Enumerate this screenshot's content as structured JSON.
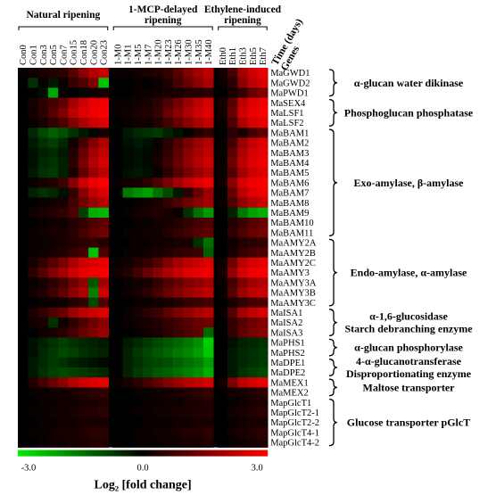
{
  "chart_data": {
    "type": "heatmap",
    "title": "",
    "column_groups": [
      {
        "name": "Natural ripening",
        "count": 9
      },
      {
        "name": "1-MCP-delayed ripening",
        "count": 10
      },
      {
        "name": "Ethylene-induced ripening",
        "count": 5
      }
    ],
    "columns": [
      "Con0",
      "Con1",
      "Con3",
      "Con5",
      "Con7",
      "Con15",
      "Con18",
      "Con20",
      "Con23",
      "1-M0",
      "1-M1",
      "1-M5",
      "1-M7",
      "1-M20",
      "1-M23",
      "1-M26",
      "1-M30",
      "1-M35",
      "1-M40",
      "Eth0",
      "Eth1",
      "Eth3",
      "Eth5",
      "Eth7"
    ],
    "corner_label_top": "Time (days)",
    "corner_label_bottom": "Genes",
    "rows": [
      "MaGWD1",
      "MaGWD2",
      "MaPWD1",
      "MaSEX4",
      "MaLSF1",
      "MaLSF2",
      "MaBAM1",
      "MaBAM2",
      "MaBAM3",
      "MaBAM4",
      "MaBAM5",
      "MaBAM6",
      "MaBAM7",
      "MaBAM8",
      "MaBAM9",
      "MaBAM10",
      "MaBAM11",
      "MaAMY2A",
      "MaAMY2B",
      "MaAMY2C",
      "MaAMY3",
      "MaAMY3A",
      "MaAMY3B",
      "MaAMY3C",
      "MaISA1",
      "MaISA2",
      "MaISA3",
      "MaPHS1",
      "MaPHS2",
      "MaDPE1",
      "MaDPE2",
      "MaMEX1",
      "MaMEX2",
      "MapGlcT1",
      "MapGlcT2-1",
      "MapGlcT2-2",
      "MapGlcT4-1",
      "MapGlcT4-2"
    ],
    "families": [
      {
        "lines": [
          "α-glucan water dikinase"
        ],
        "start": 0,
        "end": 2
      },
      {
        "lines": [
          "Phosphoglucan phosphatase"
        ],
        "start": 3,
        "end": 5
      },
      {
        "lines": [
          "Exo-amylase, β-amylase"
        ],
        "start": 6,
        "end": 16
      },
      {
        "lines": [
          "Endo-amylase, α-amylase"
        ],
        "start": 17,
        "end": 23
      },
      {
        "lines": [
          "α-1,6-glucosidase",
          "Starch debranching enzyme"
        ],
        "start": 24,
        "end": 26
      },
      {
        "lines": [
          "α-glucan phosphorylase"
        ],
        "start": 27,
        "end": 28
      },
      {
        "lines": [
          "4-α-glucanotransferase",
          "Disproportionating enzyme"
        ],
        "start": 29,
        "end": 30
      },
      {
        "lines": [
          "Maltose transporter"
        ],
        "start": 31,
        "end": 32
      },
      {
        "lines": [
          "Glucose transporter pGlcT"
        ],
        "start": 33,
        "end": 37
      }
    ],
    "values": [
      [
        0.1,
        0.2,
        0.3,
        0.4,
        0.5,
        1.0,
        1.6,
        2.1,
        2.3,
        0.1,
        0.1,
        0.2,
        0.3,
        0.4,
        0.6,
        1.0,
        1.5,
        1.9,
        2.2,
        0.2,
        0.8,
        1.9,
        2.4,
        2.7
      ],
      [
        0.0,
        -0.6,
        0.1,
        -0.3,
        0.1,
        0.6,
        0.9,
        1.5,
        -2.5,
        0.0,
        0.0,
        0.1,
        0.0,
        0.1,
        0.4,
        0.8,
        1.2,
        1.6,
        2.0,
        0.1,
        0.5,
        1.6,
        2.2,
        2.5
      ],
      [
        0.0,
        0.0,
        -0.2,
        -2.1,
        0.1,
        0.0,
        -0.1,
        0.2,
        0.3,
        0.0,
        0.0,
        0.1,
        0.1,
        0.2,
        0.3,
        0.3,
        0.4,
        0.4,
        0.5,
        0.0,
        0.3,
        0.6,
        1.2,
        1.5
      ],
      [
        0.0,
        0.3,
        0.5,
        0.8,
        1.1,
        1.9,
        2.4,
        2.7,
        2.8,
        0.1,
        0.1,
        0.2,
        0.3,
        0.5,
        0.9,
        1.3,
        1.8,
        2.2,
        2.5,
        0.3,
        1.0,
        2.2,
        2.6,
        2.8
      ],
      [
        0.0,
        0.2,
        0.5,
        1.0,
        1.5,
        2.2,
        2.6,
        2.8,
        2.9,
        0.1,
        0.2,
        0.3,
        0.4,
        0.6,
        1.2,
        1.6,
        2.0,
        2.4,
        2.6,
        0.2,
        1.2,
        2.4,
        2.7,
        2.9
      ],
      [
        0.0,
        0.1,
        0.3,
        0.6,
        0.9,
        1.5,
        2.0,
        2.4,
        2.6,
        0.0,
        0.1,
        0.2,
        0.2,
        0.4,
        0.8,
        1.2,
        1.6,
        2.0,
        2.3,
        0.1,
        0.9,
        2.0,
        2.5,
        2.7
      ],
      [
        0.0,
        -0.5,
        -0.9,
        -1.2,
        -1.0,
        -0.6,
        -0.3,
        -0.1,
        0.3,
        0.0,
        -0.3,
        -0.5,
        -0.6,
        -0.7,
        -0.4,
        -0.2,
        0.1,
        0.4,
        0.6,
        0.0,
        0.5,
        0.3,
        0.8,
        1.1
      ],
      [
        0.0,
        -0.3,
        -0.6,
        -0.8,
        -0.5,
        0.2,
        0.8,
        1.5,
        2.0,
        0.0,
        -0.2,
        -0.3,
        -0.2,
        0.1,
        0.5,
        0.9,
        1.4,
        1.8,
        2.1,
        0.1,
        0.8,
        1.8,
        2.3,
        2.6
      ],
      [
        0.0,
        -0.2,
        -0.4,
        -0.5,
        -0.3,
        0.4,
        1.2,
        1.9,
        2.3,
        0.0,
        -0.1,
        -0.2,
        -0.1,
        0.2,
        0.6,
        1.1,
        1.6,
        2.0,
        2.3,
        0.1,
        1.1,
        2.0,
        2.5,
        2.7
      ],
      [
        0.0,
        -0.2,
        -0.5,
        -0.6,
        -0.4,
        0.5,
        1.4,
        2.1,
        2.5,
        0.0,
        -0.1,
        -0.2,
        -0.1,
        0.3,
        0.7,
        1.2,
        1.7,
        2.1,
        2.4,
        0.1,
        1.3,
        2.2,
        2.6,
        2.8
      ],
      [
        0.0,
        -0.3,
        -0.6,
        -0.7,
        -0.4,
        0.3,
        1.1,
        1.8,
        2.2,
        0.0,
        -0.2,
        -0.3,
        -0.2,
        0.1,
        0.5,
        1.0,
        1.4,
        1.8,
        2.1,
        0.1,
        1.0,
        1.9,
        2.4,
        2.6
      ],
      [
        0.0,
        0.1,
        0.3,
        0.4,
        0.7,
        1.6,
        2.4,
        2.8,
        2.9,
        0.1,
        0.2,
        0.3,
        0.5,
        0.9,
        1.4,
        1.9,
        2.3,
        2.6,
        2.8,
        0.2,
        1.6,
        2.5,
        2.8,
        2.9
      ],
      [
        0.0,
        -0.4,
        -0.6,
        -0.5,
        -0.2,
        0.6,
        1.6,
        2.3,
        2.6,
        0.0,
        -1.5,
        -1.8,
        -2.0,
        -1.4,
        -0.9,
        -0.3,
        0.5,
        1.2,
        1.8,
        0.0,
        1.2,
        2.2,
        2.6,
        2.8
      ],
      [
        0.0,
        0.0,
        0.1,
        0.2,
        0.3,
        0.8,
        1.3,
        1.8,
        2.1,
        0.0,
        0.0,
        0.1,
        0.2,
        0.3,
        0.6,
        0.9,
        1.3,
        1.6,
        1.9,
        0.1,
        0.9,
        1.7,
        2.1,
        2.4
      ],
      [
        0.0,
        0.2,
        0.3,
        0.4,
        0.6,
        0.9,
        -0.8,
        -2.2,
        -2.3,
        0.0,
        0.1,
        0.2,
        0.3,
        0.4,
        0.3,
        0.1,
        -0.6,
        -1.4,
        -1.9,
        0.0,
        -0.4,
        -1.5,
        -2.0,
        -2.2
      ],
      [
        0.0,
        0.0,
        0.1,
        0.2,
        0.2,
        0.4,
        0.6,
        0.9,
        1.1,
        0.0,
        0.0,
        0.1,
        0.1,
        0.2,
        0.3,
        0.4,
        0.6,
        0.8,
        0.9,
        0.0,
        0.4,
        0.7,
        1.0,
        1.2
      ],
      [
        0.0,
        0.1,
        0.2,
        0.3,
        0.3,
        0.5,
        0.8,
        1.1,
        1.3,
        0.0,
        0.1,
        0.1,
        0.2,
        0.2,
        0.4,
        0.6,
        0.8,
        1.0,
        1.1,
        0.0,
        0.5,
        0.9,
        1.2,
        1.4
      ],
      [
        0.0,
        0.1,
        0.1,
        0.2,
        0.3,
        0.4,
        0.5,
        0.6,
        0.4,
        0.0,
        0.0,
        0.1,
        0.1,
        0.2,
        0.2,
        0.3,
        0.3,
        -0.6,
        -1.4,
        0.0,
        0.2,
        0.4,
        0.5,
        0.6
      ],
      [
        0.0,
        0.1,
        0.2,
        0.3,
        0.4,
        0.6,
        0.8,
        -2.4,
        0.9,
        0.0,
        0.1,
        0.1,
        0.2,
        0.3,
        0.4,
        0.5,
        0.6,
        0.7,
        -1.2,
        0.0,
        0.3,
        0.6,
        0.8,
        0.9
      ],
      [
        0.0,
        0.3,
        0.6,
        1.0,
        1.4,
        2.0,
        2.4,
        2.6,
        2.7,
        0.1,
        0.2,
        0.4,
        0.6,
        1.0,
        1.5,
        1.9,
        2.2,
        2.4,
        2.6,
        0.2,
        1.3,
        2.2,
        2.5,
        2.7
      ],
      [
        0.0,
        0.5,
        1.0,
        1.5,
        1.9,
        2.4,
        2.7,
        2.8,
        2.9,
        0.2,
        0.4,
        0.8,
        1.2,
        1.6,
        2.0,
        2.3,
        2.6,
        2.7,
        2.8,
        0.3,
        1.7,
        2.5,
        2.8,
        2.9
      ],
      [
        0.0,
        0.1,
        0.3,
        0.5,
        0.8,
        1.3,
        1.7,
        -1.1,
        1.9,
        0.0,
        0.1,
        0.2,
        0.3,
        0.6,
        0.9,
        1.2,
        1.5,
        1.7,
        1.9,
        0.1,
        0.8,
        1.5,
        1.9,
        2.1
      ],
      [
        0.0,
        0.2,
        0.4,
        0.7,
        1.1,
        1.6,
        2.0,
        -1.6,
        2.4,
        0.0,
        0.1,
        0.3,
        0.5,
        0.8,
        1.2,
        1.5,
        1.8,
        2.0,
        2.2,
        0.1,
        1.0,
        1.8,
        2.2,
        2.4
      ],
      [
        0.0,
        0.0,
        0.1,
        0.1,
        0.2,
        0.4,
        0.6,
        -0.9,
        0.9,
        0.0,
        0.0,
        0.1,
        0.1,
        0.2,
        0.3,
        0.4,
        0.6,
        0.7,
        0.8,
        0.0,
        0.3,
        0.6,
        0.8,
        0.9
      ],
      [
        0.0,
        0.3,
        0.6,
        0.9,
        1.2,
        1.8,
        2.2,
        2.4,
        2.6,
        0.0,
        0.1,
        0.3,
        0.5,
        0.7,
        1.1,
        1.4,
        1.7,
        2.0,
        2.2,
        0.1,
        1.0,
        1.9,
        2.3,
        2.5
      ],
      [
        0.0,
        0.2,
        0.3,
        -0.6,
        0.2,
        0.5,
        0.9,
        1.3,
        1.6,
        0.0,
        0.1,
        0.2,
        0.3,
        0.4,
        0.6,
        0.8,
        1.0,
        1.2,
        1.3,
        0.0,
        0.6,
        1.0,
        1.3,
        1.5
      ],
      [
        0.0,
        0.0,
        0.2,
        0.3,
        0.5,
        0.8,
        1.2,
        1.5,
        1.8,
        0.0,
        0.0,
        0.1,
        0.2,
        0.3,
        0.5,
        0.7,
        0.9,
        1.1,
        -1.3,
        0.0,
        0.6,
        1.1,
        1.4,
        1.6
      ],
      [
        0.0,
        -0.2,
        -0.4,
        -0.6,
        -0.8,
        -0.6,
        -0.5,
        -0.4,
        -0.3,
        0.0,
        -0.3,
        -0.5,
        -0.7,
        -0.9,
        -1.1,
        -1.3,
        -1.5,
        -1.8,
        -2.6,
        0.0,
        -0.2,
        -0.4,
        -0.5,
        -0.6
      ],
      [
        0.0,
        -0.2,
        -0.5,
        -0.7,
        -0.9,
        -0.8,
        -0.6,
        -0.5,
        -0.4,
        0.0,
        -0.4,
        -0.7,
        -0.9,
        -1.1,
        -1.3,
        -1.5,
        -1.7,
        -2.0,
        -2.5,
        0.0,
        -0.3,
        -0.5,
        -0.6,
        -0.7
      ],
      [
        0.0,
        -0.3,
        -0.5,
        -0.7,
        -0.6,
        -0.4,
        -0.3,
        -0.2,
        -0.1,
        0.0,
        -0.4,
        -0.6,
        -0.8,
        -0.9,
        -1.0,
        -1.2,
        -1.4,
        -1.6,
        -2.0,
        0.0,
        -0.3,
        -0.5,
        -0.6,
        -0.7
      ],
      [
        0.0,
        -0.3,
        -0.6,
        -0.8,
        -0.9,
        -0.8,
        -0.7,
        -0.6,
        -0.5,
        0.0,
        -0.4,
        -0.7,
        -0.9,
        -1.1,
        -1.2,
        -1.4,
        -1.6,
        -1.8,
        -2.2,
        0.0,
        -0.3,
        -0.6,
        -0.8,
        -0.9
      ],
      [
        0.0,
        0.4,
        0.8,
        1.2,
        1.6,
        2.1,
        2.4,
        2.6,
        2.7,
        0.1,
        0.3,
        0.5,
        0.8,
        1.1,
        1.5,
        1.8,
        2.1,
        2.3,
        2.5,
        0.2,
        1.4,
        2.2,
        2.5,
        2.7
      ],
      [
        0.0,
        0.1,
        0.1,
        0.2,
        0.2,
        0.3,
        0.4,
        0.5,
        0.6,
        0.0,
        0.0,
        0.1,
        0.1,
        0.2,
        0.2,
        0.3,
        0.4,
        0.5,
        0.6,
        0.0,
        0.2,
        0.3,
        0.4,
        0.5
      ],
      [
        0.0,
        0.0,
        0.1,
        0.1,
        0.2,
        0.2,
        0.3,
        0.3,
        0.4,
        0.0,
        0.0,
        0.0,
        0.1,
        0.1,
        0.2,
        0.2,
        0.3,
        0.3,
        0.4,
        0.0,
        0.1,
        0.2,
        0.3,
        0.4
      ],
      [
        0.0,
        0.1,
        0.1,
        0.2,
        0.2,
        0.3,
        0.4,
        0.4,
        0.5,
        0.0,
        0.0,
        0.1,
        0.1,
        0.2,
        0.2,
        0.3,
        0.3,
        0.4,
        0.4,
        0.0,
        0.2,
        0.3,
        0.4,
        0.5
      ],
      [
        0.0,
        0.0,
        0.1,
        0.1,
        0.2,
        0.2,
        0.3,
        0.3,
        0.3,
        0.0,
        0.0,
        0.0,
        0.1,
        0.1,
        0.1,
        0.2,
        0.2,
        0.3,
        0.3,
        0.0,
        0.1,
        0.2,
        0.3,
        0.3
      ],
      [
        0.0,
        0.1,
        0.1,
        0.2,
        0.3,
        0.3,
        0.4,
        0.5,
        0.5,
        0.0,
        0.0,
        0.1,
        0.1,
        0.2,
        0.2,
        0.3,
        0.4,
        0.4,
        0.5,
        0.0,
        0.2,
        0.3,
        0.4,
        0.5
      ],
      [
        0.0,
        0.0,
        0.1,
        0.2,
        0.2,
        0.3,
        0.3,
        0.4,
        0.4,
        0.0,
        0.0,
        0.1,
        0.1,
        0.1,
        0.2,
        0.2,
        0.3,
        0.3,
        0.4,
        0.0,
        0.1,
        0.2,
        0.3,
        0.4
      ]
    ],
    "color_scale": {
      "min": -3.0,
      "mid": 0.0,
      "max": 3.0,
      "low_color": "#00ee00",
      "mid_color": "#000000",
      "high_color": "#ff0000"
    },
    "colorbar": {
      "ticks": [
        "-3.0",
        "0.0",
        "3.0"
      ],
      "title": "Log₂ [fold change]"
    }
  }
}
